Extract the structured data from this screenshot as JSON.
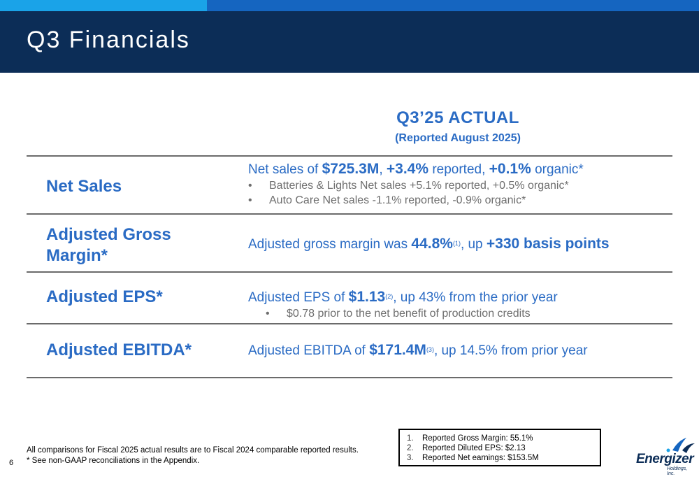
{
  "header": {
    "title": "Q3 Financials"
  },
  "column": {
    "heading": "Q3’25 ACTUAL",
    "subheading": "(Reported August 2025)"
  },
  "rows": {
    "net_sales": {
      "label": "Net Sales",
      "t1": "Net sales of ",
      "v1": "$725.3M",
      "t2": ", ",
      "v2": "+3.4%",
      "t3": " reported, ",
      "v3": "+0.1%",
      "t4": " organic*",
      "bullets": [
        "Batteries & Lights Net sales +5.1% reported, +0.5% organic*",
        "Auto Care Net sales -1.1% reported, -0.9% organic*"
      ]
    },
    "gross_margin": {
      "label_line1": "Adjusted Gross",
      "label_line2": "Margin*",
      "t1": "Adjusted gross margin was ",
      "v1": "44.8%",
      "sup": "(1)",
      "t2": ", up ",
      "v2": "+330 basis points"
    },
    "eps": {
      "label": "Adjusted EPS*",
      "t1": "Adjusted EPS of ",
      "v1": "$1.13",
      "sup": "(2)",
      "t2": ", up 43% from the prior year",
      "bullet": "$0.78 prior to the net benefit of production credits"
    },
    "ebitda": {
      "label": "Adjusted EBITDA*",
      "t1": "Adjusted EBITDA of ",
      "v1": "$171.4M",
      "sup": "(3)",
      "t2": ", up 14.5% from prior year"
    }
  },
  "footnotes": {
    "line1": "All comparisons for Fiscal 2025 actual results are to Fiscal 2024 comparable reported results.",
    "line2": "* See non-GAAP reconciliations in the Appendix."
  },
  "page_number": "6",
  "references": [
    {
      "num": "1.",
      "text": "Reported Gross Margin: 55.1%"
    },
    {
      "num": "2.",
      "text": "Reported Diluted EPS: $2.13"
    },
    {
      "num": "3.",
      "text": "Reported Net earnings: $153.5M"
    }
  ],
  "logo": {
    "name": "Energizer",
    "sub": "Holdings, Inc."
  },
  "colors": {
    "navy": "#0c2d57",
    "accent_blue": "#2a6bc4",
    "bar_light": "#1aa3e8",
    "bar_dark": "#1565c0"
  }
}
